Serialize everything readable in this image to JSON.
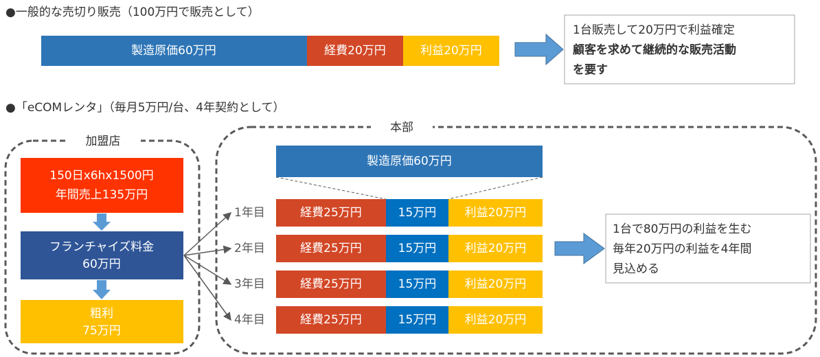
{
  "section1": {
    "heading": "●一般的な売切り販売（100万円で販売として）",
    "bar": [
      {
        "label": "製造原価60万円"
      },
      {
        "label": "経費20万円"
      },
      {
        "label": "利益20万円"
      }
    ],
    "note": {
      "lines": [
        "1台販売して20万円で利益確定",
        "顧客を求めて継続的な販売活動",
        "を要す"
      ]
    }
  },
  "section2": {
    "heading": "●「eCOMレンタ」（毎月5万円/台、4年契約として）",
    "franchise": {
      "title": "加盟店",
      "steps": [
        {
          "lines": [
            "150日x6hx1500円",
            "年間売上135万円"
          ]
        },
        {
          "lines": [
            "フランチャイズ料金",
            "60万円"
          ]
        },
        {
          "lines": [
            "粗利",
            "75万円"
          ]
        }
      ]
    },
    "hq": {
      "title": "本部",
      "cost": "製造原価60万円",
      "rows": [
        {
          "year": "1年目",
          "segments": [
            "経費25万円",
            "15万円",
            "利益20万円"
          ]
        },
        {
          "year": "2年目",
          "segments": [
            "経費25万円",
            "15万円",
            "利益20万円"
          ]
        },
        {
          "year": "3年目",
          "segments": [
            "経費25万円",
            "15万円",
            "利益20万円"
          ]
        },
        {
          "year": "4年目",
          "segments": [
            "経費25万円",
            "15万円",
            "利益20万円"
          ]
        }
      ]
    },
    "note": {
      "lines": [
        "1台で80万円の利益を生む",
        "毎年20万円の利益を4年間",
        "見込める"
      ]
    }
  }
}
